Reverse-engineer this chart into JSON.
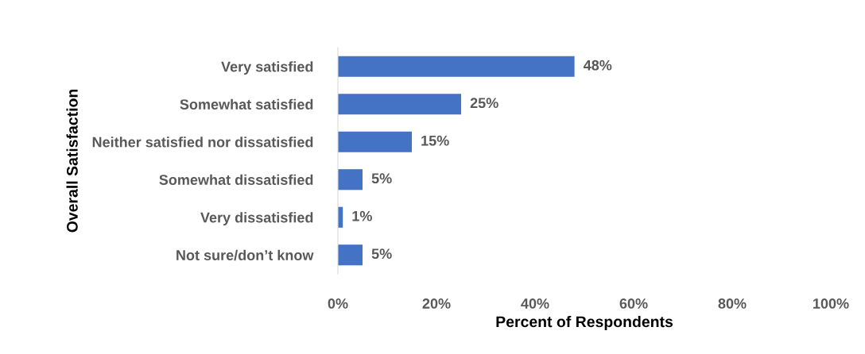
{
  "chart_data": {
    "type": "bar",
    "orientation": "horizontal",
    "xlabel": "Percent of Respondents",
    "ylabel": "Overall Satisfaction",
    "categories": [
      "Very satisfied",
      "Somewhat satisfied",
      "Neither satisfied nor dissatisfied",
      "Somewhat dissatisfied",
      "Very dissatisfied",
      "Not sure/don’t know"
    ],
    "values": [
      48,
      25,
      15,
      5,
      1,
      5
    ],
    "value_labels": [
      "48%",
      "25%",
      "15%",
      "5%",
      "1%",
      "5%"
    ],
    "color": "#4472c4",
    "xlim": [
      0,
      100
    ],
    "xticks": [
      {
        "value": 0,
        "label": "0%"
      },
      {
        "value": 20,
        "label": "20%"
      },
      {
        "value": 40,
        "label": "40%"
      },
      {
        "value": 60,
        "label": "60%"
      },
      {
        "value": 80,
        "label": "80%"
      },
      {
        "value": 100,
        "label": "100%"
      }
    ],
    "grid": false,
    "legend": false
  }
}
